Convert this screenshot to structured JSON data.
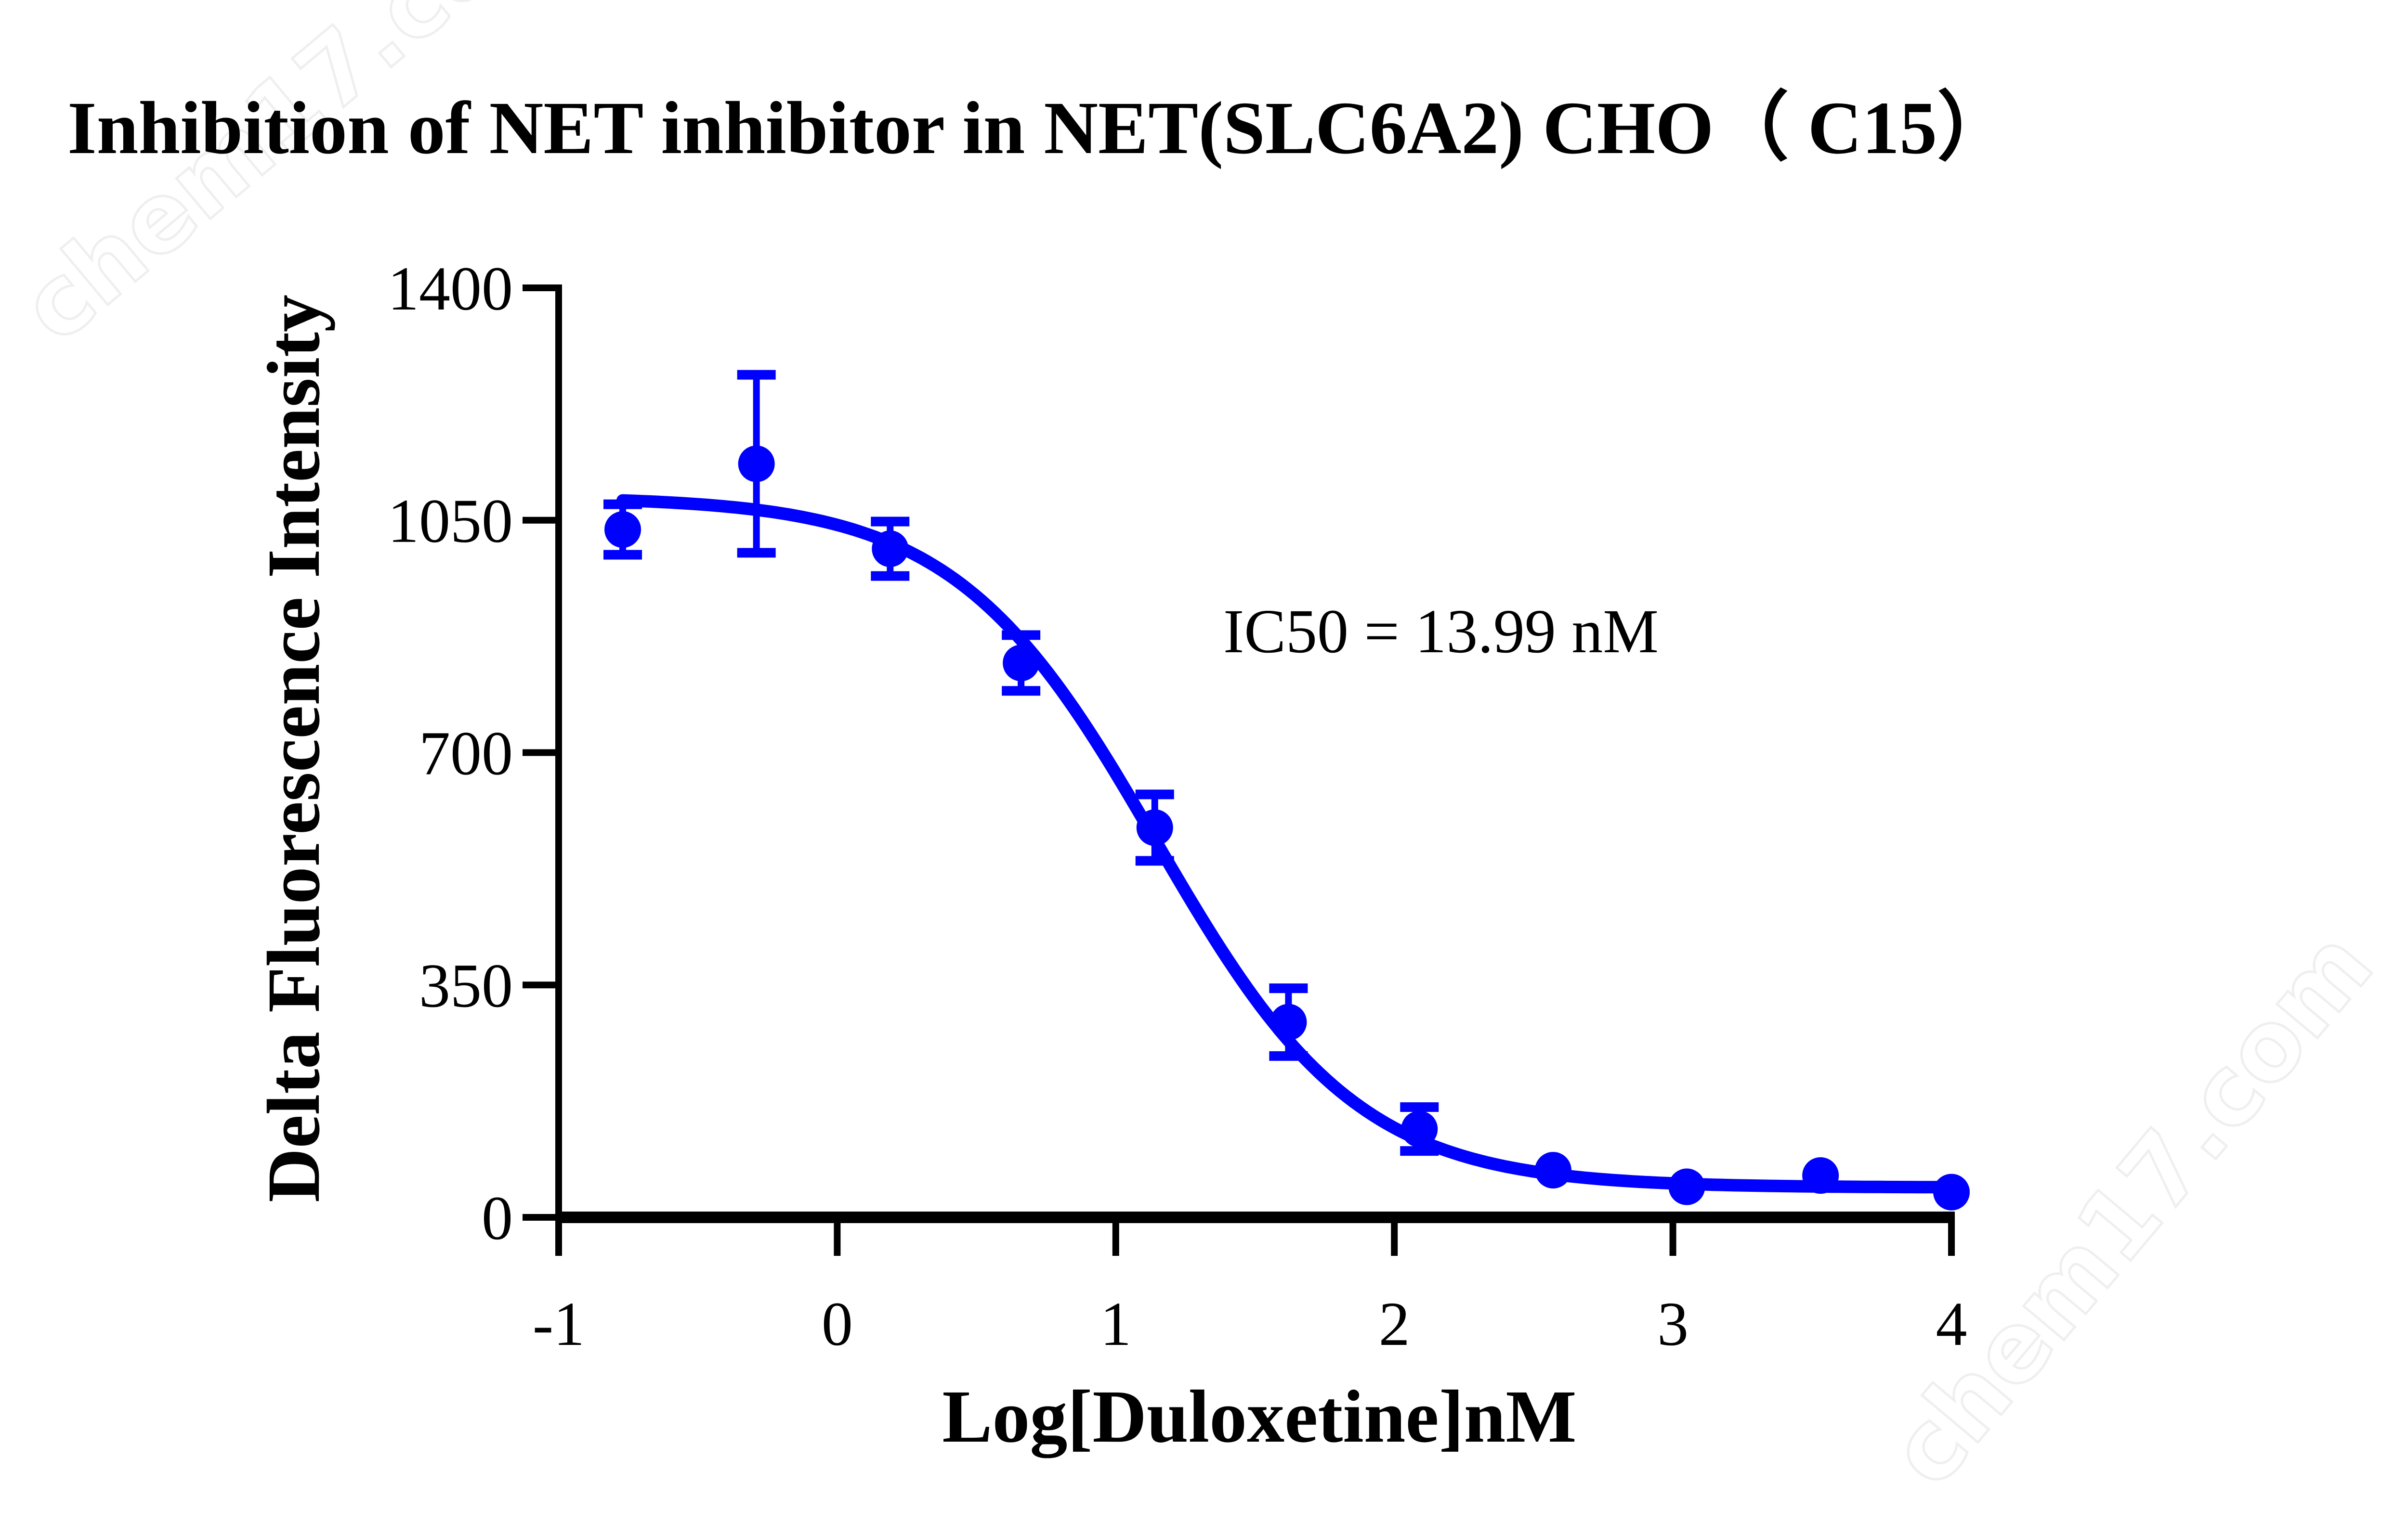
{
  "chart_data": {
    "type": "scatter",
    "title": "Inhibition of NET inhibitor in NET(SLC6A2) CHO（ C15）",
    "xlabel": "Log[Duloxetine]nM",
    "ylabel": "Delta Fluorescence Intensity",
    "xlim": [
      -1,
      4
    ],
    "ylim": [
      0,
      1400
    ],
    "xticks": [
      -1,
      0,
      1,
      2,
      3,
      4
    ],
    "yticks": [
      0,
      350,
      700,
      1050,
      1400
    ],
    "grid": false,
    "legend": null,
    "annotation": "IC50 = 13.99 nM",
    "color": "#0000ff",
    "series": [
      {
        "name": "Duloxetine",
        "x": [
          -0.77,
          -0.29,
          0.19,
          0.66,
          1.14,
          1.62,
          2.09,
          2.57,
          3.05,
          3.53,
          4.0
        ],
        "y": [
          1036,
          1135,
          1007,
          835,
          587,
          294,
          133,
          71,
          46,
          63,
          38
        ],
        "error": [
          38,
          134,
          41,
          42,
          50,
          51,
          33,
          0,
          0,
          0,
          0
        ]
      }
    ],
    "fit": {
      "model": "four-parameter logistic",
      "top": 1085,
      "bottom": 45,
      "logIC50": 1.146,
      "hill_slope": 1.2,
      "x_range": [
        -0.77,
        4.0
      ]
    }
  },
  "watermark": "chem17.com"
}
